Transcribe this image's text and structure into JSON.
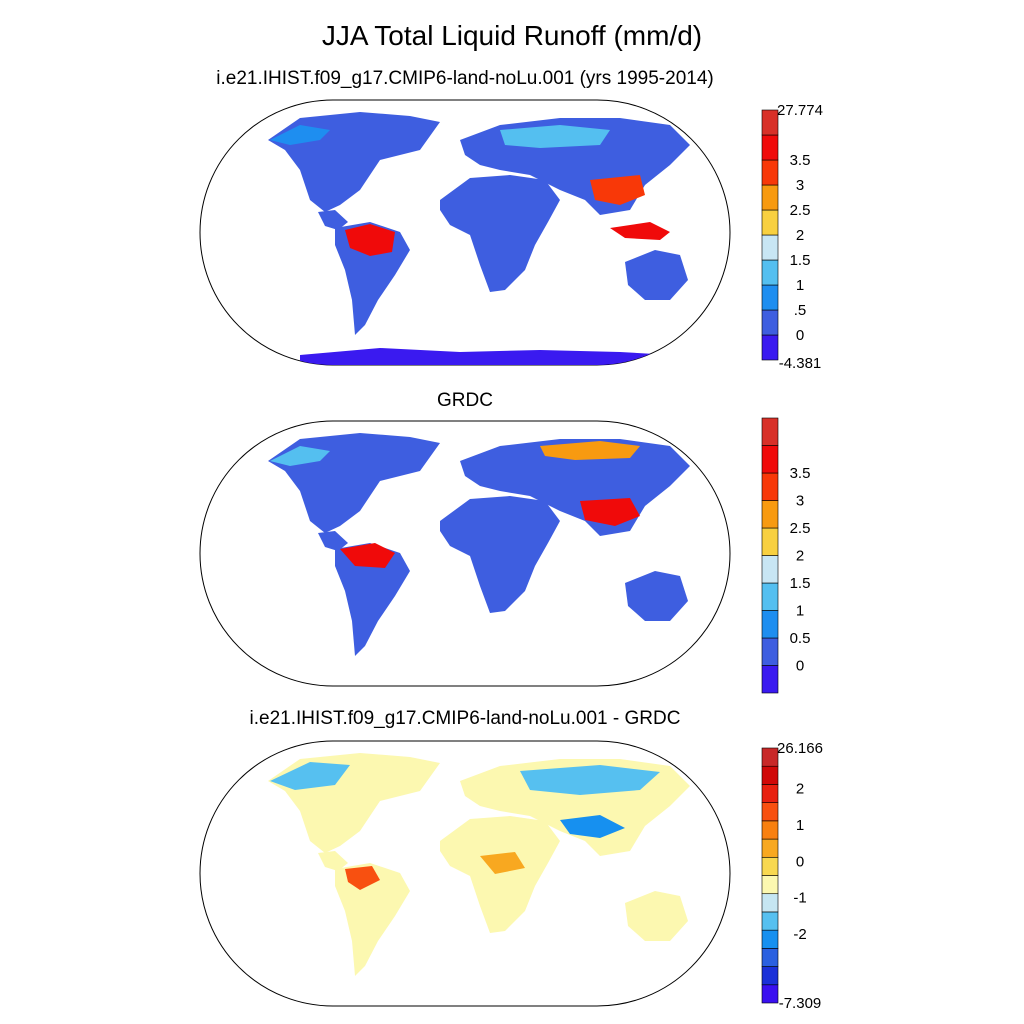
{
  "title": "JJA Total Liquid Runoff (mm/d)",
  "panels": [
    {
      "id": "model",
      "title": "i.e21.IHIST.f09_g17.CMIP6-land-noLu.001 (yrs 1995-2014)",
      "colorbar": {
        "colors": [
          "#3a1af0",
          "#3e5ee0",
          "#1e8ef0",
          "#54bff0",
          "#c8e6f4",
          "#f8d040",
          "#f89a10",
          "#f83808",
          "#f00a0a",
          "#d83028"
        ],
        "labels": [
          "-4.381",
          "0",
          ".5",
          "1",
          "1.5",
          "2",
          "2.5",
          "3",
          "3.5",
          "27.774"
        ]
      }
    },
    {
      "id": "obs",
      "title": "GRDC",
      "colorbar": {
        "colors": [
          "#3a1af0",
          "#3e5ee0",
          "#1e8ef0",
          "#54bff0",
          "#c8e6f4",
          "#f8d040",
          "#f89a10",
          "#f83808",
          "#f00a0a",
          "#d83028"
        ],
        "labels": [
          "0",
          "0.5",
          "1",
          "1.5",
          "2",
          "2.5",
          "3",
          "3.5"
        ]
      }
    },
    {
      "id": "diff",
      "title": "i.e21.IHIST.f09_g17.CMIP6-land-noLu.001 - GRDC",
      "colorbar": {
        "colors": [
          "#3a10f0",
          "#1a30d8",
          "#2a60e0",
          "#1690f0",
          "#56c0f0",
          "#c6e6f2",
          "#fcf8b0",
          "#f8d850",
          "#f8a820",
          "#f88010",
          "#f85010",
          "#e82010",
          "#d00808",
          "#c82828"
        ],
        "labels": [
          "-7.309",
          "-2",
          "-1",
          "0",
          "1",
          "2",
          "26.166"
        ]
      }
    }
  ]
}
